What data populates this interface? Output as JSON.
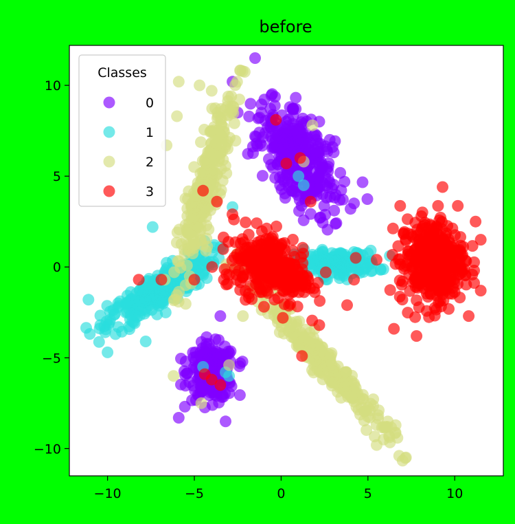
{
  "chart_data": {
    "type": "scatter",
    "title": "before",
    "xlabel": "",
    "ylabel": "",
    "xlim": [
      -12.2,
      12.8
    ],
    "ylim": [
      -11.5,
      12.2
    ],
    "x_ticks": [
      -10,
      -5,
      0,
      5,
      10
    ],
    "y_ticks": [
      -10,
      -5,
      0,
      5,
      10
    ],
    "x_tick_labels": [
      "−10",
      "−5",
      "0",
      "5",
      "10"
    ],
    "y_tick_labels": [
      "−10",
      "−5",
      "0",
      "5",
      "10"
    ],
    "grid": false,
    "legend": {
      "title": "Classes",
      "position": "top-left",
      "entries": [
        "0",
        "1",
        "2",
        "3"
      ]
    },
    "colors": {
      "background": "#00ff00",
      "plot_area": "#ffffff",
      "0": "#8000ff",
      "1": "#2adddd",
      "2": "#d4dd80",
      "3": "#ff0000"
    },
    "series": [
      {
        "name": "0",
        "clusters": [
          {
            "cx": 1.0,
            "cy": 6.0,
            "sx": 1.4,
            "sy": 2.6,
            "rot": 35,
            "n": 340
          },
          {
            "cx": -4.0,
            "cy": -5.8,
            "sx": 1.1,
            "sy": 1.2,
            "rot": 0,
            "n": 230
          }
        ],
        "outliers": [
          [
            -1.5,
            11.5
          ],
          [
            -2.8,
            10.2
          ],
          [
            -2.5,
            8.5
          ],
          [
            -1.2,
            6.8
          ],
          [
            -1.5,
            7.2
          ],
          [
            0.5,
            8.8
          ],
          [
            0.3,
            8.0
          ],
          [
            2.2,
            8.0
          ],
          [
            2.8,
            7.0
          ],
          [
            4.0,
            3.2
          ],
          [
            4.2,
            3.5
          ],
          [
            -3.5,
            -2.7
          ],
          [
            -5.9,
            -8.3
          ],
          [
            -5.5,
            -5.2
          ],
          [
            -3.2,
            -8.5
          ]
        ]
      },
      {
        "name": "1",
        "clusters": [
          {
            "cx": -7.0,
            "cy": -1.3,
            "sx": 2.9,
            "sy": 0.75,
            "rot": 32,
            "n": 300
          },
          {
            "cx": 3.2,
            "cy": 0.2,
            "sx": 1.9,
            "sy": 0.55,
            "rot": 0,
            "n": 180
          }
        ],
        "outliers": [
          [
            -11.1,
            -1.8
          ],
          [
            -10.0,
            -4.7
          ],
          [
            -7.8,
            -4.1
          ],
          [
            -7.4,
            2.2
          ],
          [
            -2.8,
            3.3
          ],
          [
            1.0,
            5.0
          ],
          [
            1.3,
            4.5
          ],
          [
            -3.2,
            -5.8
          ],
          [
            -3.0,
            -6.0
          ],
          [
            -4.5,
            -5.5
          ]
        ]
      },
      {
        "name": "2",
        "clusters": [
          {
            "cx": -4.3,
            "cy": 4.5,
            "sx": 4.1,
            "sy": 0.6,
            "rot": 74,
            "n": 300
          },
          {
            "cx": 2.2,
            "cy": -5.0,
            "sx": 4.6,
            "sy": 0.55,
            "rot": -47,
            "n": 260
          }
        ],
        "outliers": [
          [
            -5.9,
            10.2
          ],
          [
            -4.7,
            10.0
          ],
          [
            -4.0,
            9.7
          ],
          [
            -6.0,
            8.3
          ],
          [
            -6.6,
            6.7
          ],
          [
            -2.5,
            0.7
          ],
          [
            0.5,
            -2.2
          ],
          [
            6.8,
            -10.4
          ],
          [
            5.9,
            -9.5
          ],
          [
            5.5,
            -9.8
          ],
          [
            -2.2,
            -2.7
          ],
          [
            1.8,
            7.8
          ],
          [
            -5.5,
            -1.0
          ],
          [
            -6.7,
            -0.7
          ],
          [
            -4.6,
            -7.5
          ],
          [
            -6.2,
            -6.0
          ],
          [
            -3.0,
            -5.4
          ],
          [
            1.3,
            5.8
          ]
        ]
      },
      {
        "name": "3",
        "clusters": [
          {
            "cx": -0.5,
            "cy": 0.0,
            "sx": 2.0,
            "sy": 1.4,
            "rot": -22,
            "n": 300
          },
          {
            "cx": 8.7,
            "cy": 0.3,
            "sx": 1.5,
            "sy": 1.9,
            "rot": 0,
            "n": 380
          }
        ],
        "outliers": [
          [
            -0.3,
            8.1
          ],
          [
            0.3,
            5.7
          ],
          [
            1.1,
            6.0
          ],
          [
            1.7,
            3.6
          ],
          [
            -4.5,
            4.2
          ],
          [
            -3.7,
            3.6
          ],
          [
            -8.2,
            -0.7
          ],
          [
            -6.9,
            -0.7
          ],
          [
            -5.0,
            -0.7
          ],
          [
            -3.3,
            -0.7
          ],
          [
            -4.0,
            -6.2
          ],
          [
            -3.5,
            -6.5
          ],
          [
            -4.4,
            -5.9
          ],
          [
            1.2,
            -4.9
          ],
          [
            2.2,
            -3.2
          ],
          [
            0.1,
            -2.8
          ],
          [
            3.8,
            -2.1
          ],
          [
            4.2,
            -0.7
          ],
          [
            4.3,
            0.5
          ],
          [
            5.5,
            0.4
          ],
          [
            7.8,
            -3.8
          ],
          [
            9.3,
            4.4
          ],
          [
            11.2,
            2.5
          ],
          [
            11.5,
            1.5
          ],
          [
            11.5,
            -1.3
          ],
          [
            6.5,
            -3.4
          ]
        ]
      }
    ]
  }
}
